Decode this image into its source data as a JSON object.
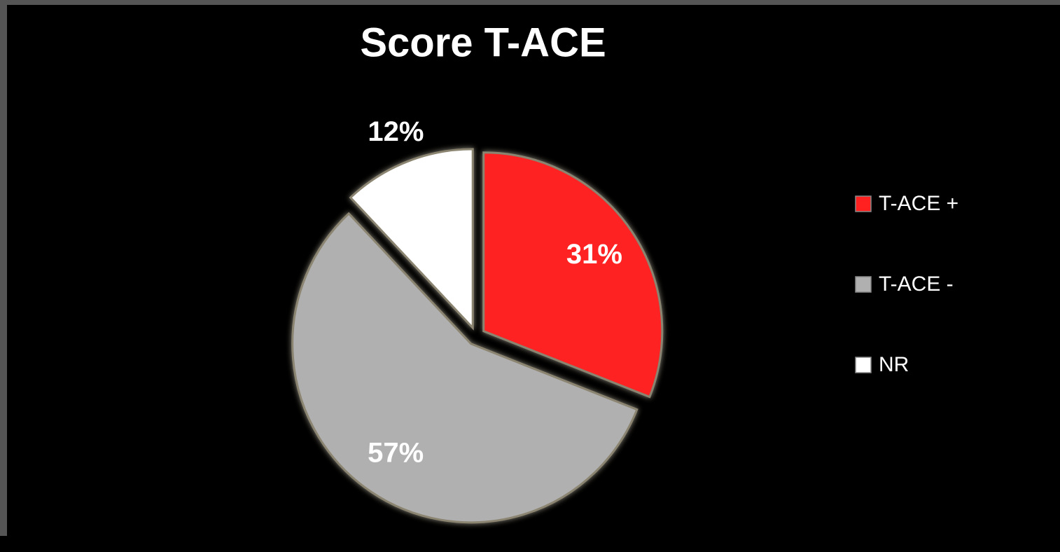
{
  "chart_data": {
    "type": "pie",
    "title": "Score T-ACE",
    "categories": [
      "T-ACE +",
      "T-ACE -",
      "NR"
    ],
    "values": [
      31,
      57,
      12
    ],
    "value_labels": [
      "31%",
      "57%",
      "12%"
    ],
    "colors": [
      "#ff2020",
      "#b0b0b0",
      "#ffffff"
    ],
    "legend": "right"
  }
}
